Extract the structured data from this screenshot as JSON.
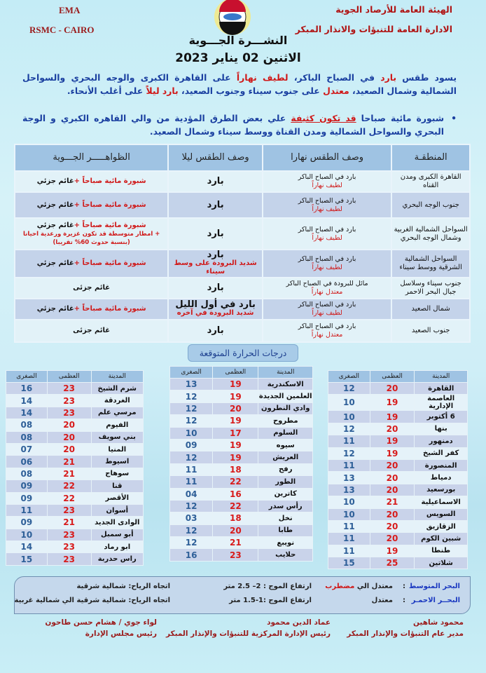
{
  "header": {
    "en1": "EMA",
    "en2": "RSMC - CAIRO",
    "org1": "الهيئة العامة للأرصاد الجوية",
    "org2": "الادارة العامة للتنبؤات والانذار المبكر",
    "title": "النشـــرة الجـــوية",
    "date": "الاثنين 02 يناير 2023"
  },
  "summary": {
    "p": [
      "يسود طقس ",
      "بارد",
      " في الصباح الباكر، ",
      "لطيف نهاراً",
      " على القاهرة الكبرى والوجه البحري والسواحل الشمالية وشمال الصعيد، ",
      "معتدل",
      " على جنوب سيناء وجنوب الصعيد، ",
      "بارد ليلاً",
      " على أغلب الأنحاء."
    ],
    "bullet": [
      "شبورة مائية صباحا ",
      "قد تكون كثيفة",
      " علي بعض الطرق المؤدية من والي القاهره الكبري و الوجة البحري والسواحل الشمالية ومدن القناة ووسط سيناء وشمال الصعيد."
    ]
  },
  "forecast": {
    "headers": [
      "المنطقـة",
      "وصف الطقس نهارا",
      "وصف الطقس ليلا",
      "الظواهـــــر الجـــوية"
    ],
    "rows": [
      {
        "region": "القاهرة الكبرى ومدن القناه",
        "day": "بارد في الصباح الباكر",
        "day_red": "لطيف نهاراً",
        "night": "بارد",
        "night_red": "",
        "phen_red": "شبورة مائية صباحاً +",
        "phen": "غائم جزئي",
        "extra": "",
        "extra2": ""
      },
      {
        "region": "جنوب الوجه البحري",
        "day": "بارد في الصباح الباكر",
        "day_red": "لطيف نهاراً",
        "night": "بارد",
        "night_red": "",
        "phen_red": "شبورة مائية صباحاً +",
        "phen": "غائم جزئي",
        "extra": "",
        "extra2": ""
      },
      {
        "region": "السواحل الشمالية الغربية وشمال الوجه البحري",
        "day": "بارد في الصباح الباكر",
        "day_red": "لطيف نهاراً",
        "night": "بارد",
        "night_red": "",
        "phen_red": "شبورة مائية صباحاً +",
        "phen": "غائم جزئي",
        "extra": "+ امطار متوسطة قد تكون غزيرة ورعدية احيانا",
        "extra2": "(بنسبة حدوث 60% تقريبا)"
      },
      {
        "region": "السواحل الشمالية الشرقية ووسط سيناء",
        "day": "بارد في الصباح الباكر",
        "day_red": "لطيف نهاراً",
        "night": "بارد",
        "night_red": "شديد البرودة على وسط سيناء",
        "phen_red": "شبورة مائية صباحاً +",
        "phen": "غائم جزئي",
        "extra": "",
        "extra2": ""
      },
      {
        "region": "جنوب سيناء وسلاسل جبال البحر الاحمر",
        "day": "مائل للبرودة في الصباح الباكر",
        "day_red": "معتدل نهاراً",
        "night": "بارد",
        "night_red": "",
        "phen_red": "",
        "phen": "غائم جزئى",
        "extra": "",
        "extra2": ""
      },
      {
        "region": "شمال الصعيد",
        "day": "بارد في الصباح الباكر",
        "day_red": "لطيف نهاراً",
        "night": "بارد في أول الليل",
        "night_red": "شديد البرودة في آخره",
        "phen_red": "شبورة مائية صباحاً +",
        "phen": "غائم جزئي",
        "extra": "",
        "extra2": ""
      },
      {
        "region": "جنوب الصعيد",
        "day": "بارد في الصباح الباكر",
        "day_red": "معتدل نهاراً",
        "night": "بارد",
        "night_red": "",
        "phen_red": "",
        "phen": "غائم جزئى",
        "extra": "",
        "extra2": ""
      }
    ]
  },
  "temps": {
    "title": "درجات الحرارة المتوقعة",
    "headers": [
      "المدينة",
      "العظمى",
      "الصغرى"
    ],
    "tables": [
      [
        [
          "القاهرة",
          "20",
          "12"
        ],
        [
          "العاصمة الإدارية",
          "19",
          "10"
        ],
        [
          "6 أكتوبر",
          "19",
          "10"
        ],
        [
          "بنها",
          "20",
          "12"
        ],
        [
          "دمنهور",
          "19",
          "11"
        ],
        [
          "كفر الشيخ",
          "19",
          "12"
        ],
        [
          "المنصورة",
          "20",
          "11"
        ],
        [
          "دمياط",
          "20",
          "13"
        ],
        [
          "بورسعيد",
          "20",
          "13"
        ],
        [
          "الاسماعيلية",
          "21",
          "10"
        ],
        [
          "السويس",
          "20",
          "10"
        ],
        [
          "الزقازيق",
          "20",
          "11"
        ],
        [
          "شبين الكوم",
          "20",
          "11"
        ],
        [
          "طنطا",
          "19",
          "11"
        ],
        [
          "شلاتين",
          "25",
          "15"
        ]
      ],
      [
        [
          "الاسكندرية",
          "19",
          "13"
        ],
        [
          "العلمين الجديدة",
          "19",
          "12"
        ],
        [
          "وادي النطرون",
          "20",
          "12"
        ],
        [
          "مطروح",
          "19",
          "12"
        ],
        [
          "السلوم",
          "17",
          "10"
        ],
        [
          "سيوه",
          "19",
          "09"
        ],
        [
          "العريش",
          "19",
          "12"
        ],
        [
          "رفح",
          "18",
          "11"
        ],
        [
          "الطور",
          "22",
          "11"
        ],
        [
          "كاترين",
          "16",
          "04"
        ],
        [
          "رأس سدر",
          "22",
          "12"
        ],
        [
          "نخل",
          "18",
          "03"
        ],
        [
          "طابا",
          "20",
          "12"
        ],
        [
          "نويبع",
          "21",
          "12"
        ],
        [
          "حلايب",
          "23",
          "16"
        ]
      ],
      [
        [
          "شرم الشيخ",
          "23",
          "16"
        ],
        [
          "الغردقة",
          "23",
          "14"
        ],
        [
          "مرسي علم",
          "23",
          "14"
        ],
        [
          "الفيوم",
          "20",
          "08"
        ],
        [
          "بني سويف",
          "20",
          "08"
        ],
        [
          "المنيا",
          "20",
          "07"
        ],
        [
          "اسيوط",
          "21",
          "06"
        ],
        [
          "سوهاج",
          "21",
          "08"
        ],
        [
          "قنا",
          "22",
          "09"
        ],
        [
          "الأقصر",
          "22",
          "09"
        ],
        [
          "أسوان",
          "23",
          "11"
        ],
        [
          "الوادى الجديد",
          "21",
          "09"
        ],
        [
          "أبو سمبل",
          "23",
          "10"
        ],
        [
          "ابو رماد",
          "23",
          "14"
        ],
        [
          "راس حدربة",
          "23",
          "15"
        ]
      ]
    ]
  },
  "sea": {
    "med_label": "البحر المتوسط",
    "med_state": "معتدل الي ",
    "med_state_red": "مضطرب",
    "med_wave": "ارتفاع الموج :  2– 2.5 متر",
    "med_wind": "اتجاه الرياح: شمالية شرقية",
    "red_label": "البحــر الاحمـر",
    "red_state": "معتدل",
    "red_wave": "ارتفاع الموج :1-1.5 متر",
    "red_wind": "اتجاه الرياح: شمالية شرقية الي شمالية غربية"
  },
  "signatures": [
    {
      "name": "محمود شاهين",
      "role": "مدير عام التنبؤات والإنذار المبكر"
    },
    {
      "name": "عماد الدين محمود",
      "role": "رئيس الإدارة المركزية للتنبؤات والإنذار المبكر"
    },
    {
      "name": "لواء جوي / هشام حسن طاحون",
      "role": "رئيس مجلس الإدارة"
    }
  ],
  "colors": {
    "accent_red": "#d01818",
    "text_blue": "#1a3fa0",
    "table_header": "#9fc3e3"
  }
}
